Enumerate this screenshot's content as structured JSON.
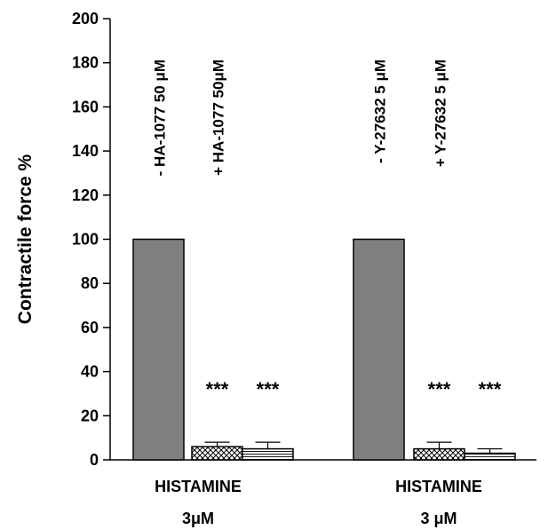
{
  "chart_data": {
    "type": "bar",
    "ylabel": "Contractile force %",
    "ylim": [
      0,
      200
    ],
    "yticks": [
      0,
      20,
      40,
      60,
      80,
      100,
      120,
      140,
      160,
      180,
      200
    ],
    "groups": [
      {
        "label_line1": "HISTAMINE",
        "label_line2": "3μM",
        "bars": [
          {
            "label": "- HA-1077 50 μM",
            "value": 100,
            "error": 0,
            "significance": "",
            "pattern": "solid",
            "color": "#808080"
          },
          {
            "label": "+ HA-1077 50μM",
            "value": 6,
            "error": 2,
            "significance": "***",
            "pattern": "crosshatch",
            "color": "#ffffff"
          },
          {
            "label": "",
            "value": 5,
            "error": 3,
            "significance": "***",
            "pattern": "horizontal-lines",
            "color": "#ffffff"
          }
        ]
      },
      {
        "label_line1": "HISTAMINE",
        "label_line2": "3 μM",
        "bars": [
          {
            "label": "- Y-27632 5 μM",
            "value": 100,
            "error": 0,
            "significance": "",
            "pattern": "solid",
            "color": "#808080"
          },
          {
            "label": "+ Y-27632 5 μM",
            "value": 5,
            "error": 3,
            "significance": "***",
            "pattern": "crosshatch",
            "color": "#ffffff"
          },
          {
            "label": "",
            "value": 3,
            "error": 2,
            "significance": "***",
            "pattern": "horizontal-lines",
            "color": "#ffffff"
          }
        ]
      }
    ],
    "grid": false,
    "legend": "none"
  }
}
